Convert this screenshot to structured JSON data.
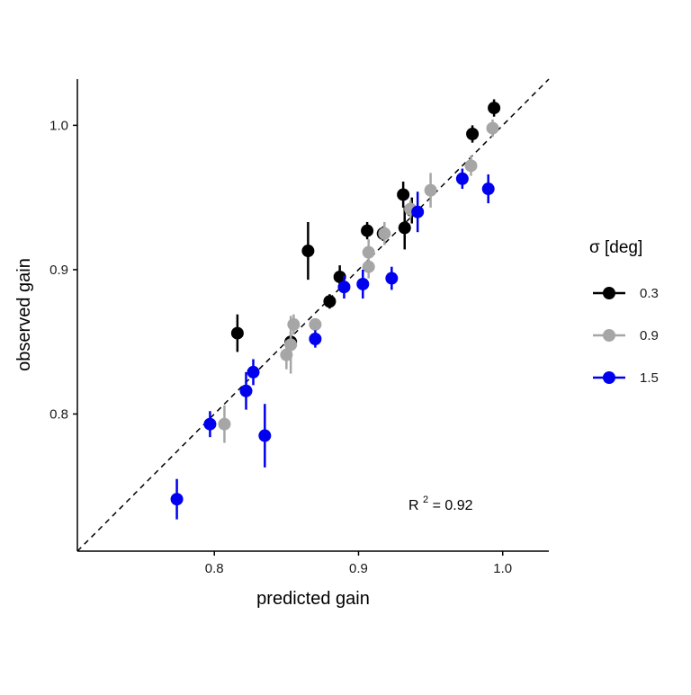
{
  "chart_data": {
    "type": "scatter",
    "title": "",
    "xlabel": "predicted gain",
    "ylabel": "observed gain",
    "xlim": [
      0.705,
      1.032
    ],
    "ylim": [
      0.705,
      1.032
    ],
    "x_ticks": [
      0.8,
      0.9,
      1.0
    ],
    "x_tick_labels": [
      "0.8",
      "0.9",
      "1.0"
    ],
    "y_ticks": [
      0.8,
      0.9,
      1.0
    ],
    "y_tick_labels": [
      "0.8",
      "0.9",
      "1.0"
    ],
    "grid": false,
    "reference_line": {
      "style": "dashed",
      "slope": 1,
      "intercept": 0
    },
    "legend": {
      "title_symbol": "σ",
      "title_unit": " [deg]",
      "placement": "right"
    },
    "annotation": {
      "text_base": "R",
      "text_sup": "2",
      "text_rest": " = 0.92"
    },
    "series": [
      {
        "name": "0.3",
        "color": "#000000",
        "points": [
          {
            "x": 0.816,
            "y": 0.856,
            "err": 0.013
          },
          {
            "x": 0.853,
            "y": 0.85,
            "err": 0.007
          },
          {
            "x": 0.865,
            "y": 0.913,
            "err": 0.02
          },
          {
            "x": 0.88,
            "y": 0.878,
            "err": 0.005
          },
          {
            "x": 0.887,
            "y": 0.895,
            "err": 0.008
          },
          {
            "x": 0.906,
            "y": 0.927,
            "err": 0.006
          },
          {
            "x": 0.917,
            "y": 0.925,
            "err": 0.005
          },
          {
            "x": 0.932,
            "y": 0.929,
            "err": 0.015
          },
          {
            "x": 0.931,
            "y": 0.952,
            "err": 0.009
          },
          {
            "x": 0.937,
            "y": 0.941,
            "err": 0.009
          },
          {
            "x": 0.979,
            "y": 0.994,
            "err": 0.006
          },
          {
            "x": 0.994,
            "y": 1.012,
            "err": 0.006
          }
        ]
      },
      {
        "name": "0.9",
        "color": "#a6a6a6",
        "points": [
          {
            "x": 0.807,
            "y": 0.793,
            "err": 0.013
          },
          {
            "x": 0.85,
            "y": 0.841,
            "err": 0.01
          },
          {
            "x": 0.853,
            "y": 0.848,
            "err": 0.02
          },
          {
            "x": 0.855,
            "y": 0.862,
            "err": 0.007
          },
          {
            "x": 0.87,
            "y": 0.862,
            "err": 0.004
          },
          {
            "x": 0.907,
            "y": 0.902,
            "err": 0.008
          },
          {
            "x": 0.907,
            "y": 0.912,
            "err": 0.009
          },
          {
            "x": 0.918,
            "y": 0.925,
            "err": 0.008
          },
          {
            "x": 0.936,
            "y": 0.942,
            "err": 0.006
          },
          {
            "x": 0.95,
            "y": 0.955,
            "err": 0.012
          },
          {
            "x": 0.978,
            "y": 0.972,
            "err": 0.007
          },
          {
            "x": 0.993,
            "y": 0.998,
            "err": 0.006
          }
        ]
      },
      {
        "name": "1.5",
        "color": "#0000ee",
        "points": [
          {
            "x": 0.774,
            "y": 0.741,
            "err": 0.014
          },
          {
            "x": 0.797,
            "y": 0.793,
            "err": 0.009
          },
          {
            "x": 0.822,
            "y": 0.816,
            "err": 0.013
          },
          {
            "x": 0.827,
            "y": 0.829,
            "err": 0.009
          },
          {
            "x": 0.835,
            "y": 0.785,
            "err": 0.022
          },
          {
            "x": 0.87,
            "y": 0.852,
            "err": 0.006
          },
          {
            "x": 0.89,
            "y": 0.888,
            "err": 0.008
          },
          {
            "x": 0.903,
            "y": 0.89,
            "err": 0.01
          },
          {
            "x": 0.923,
            "y": 0.894,
            "err": 0.008
          },
          {
            "x": 0.941,
            "y": 0.94,
            "err": 0.014
          },
          {
            "x": 0.972,
            "y": 0.963,
            "err": 0.007
          },
          {
            "x": 0.99,
            "y": 0.956,
            "err": 0.01
          }
        ]
      }
    ]
  }
}
